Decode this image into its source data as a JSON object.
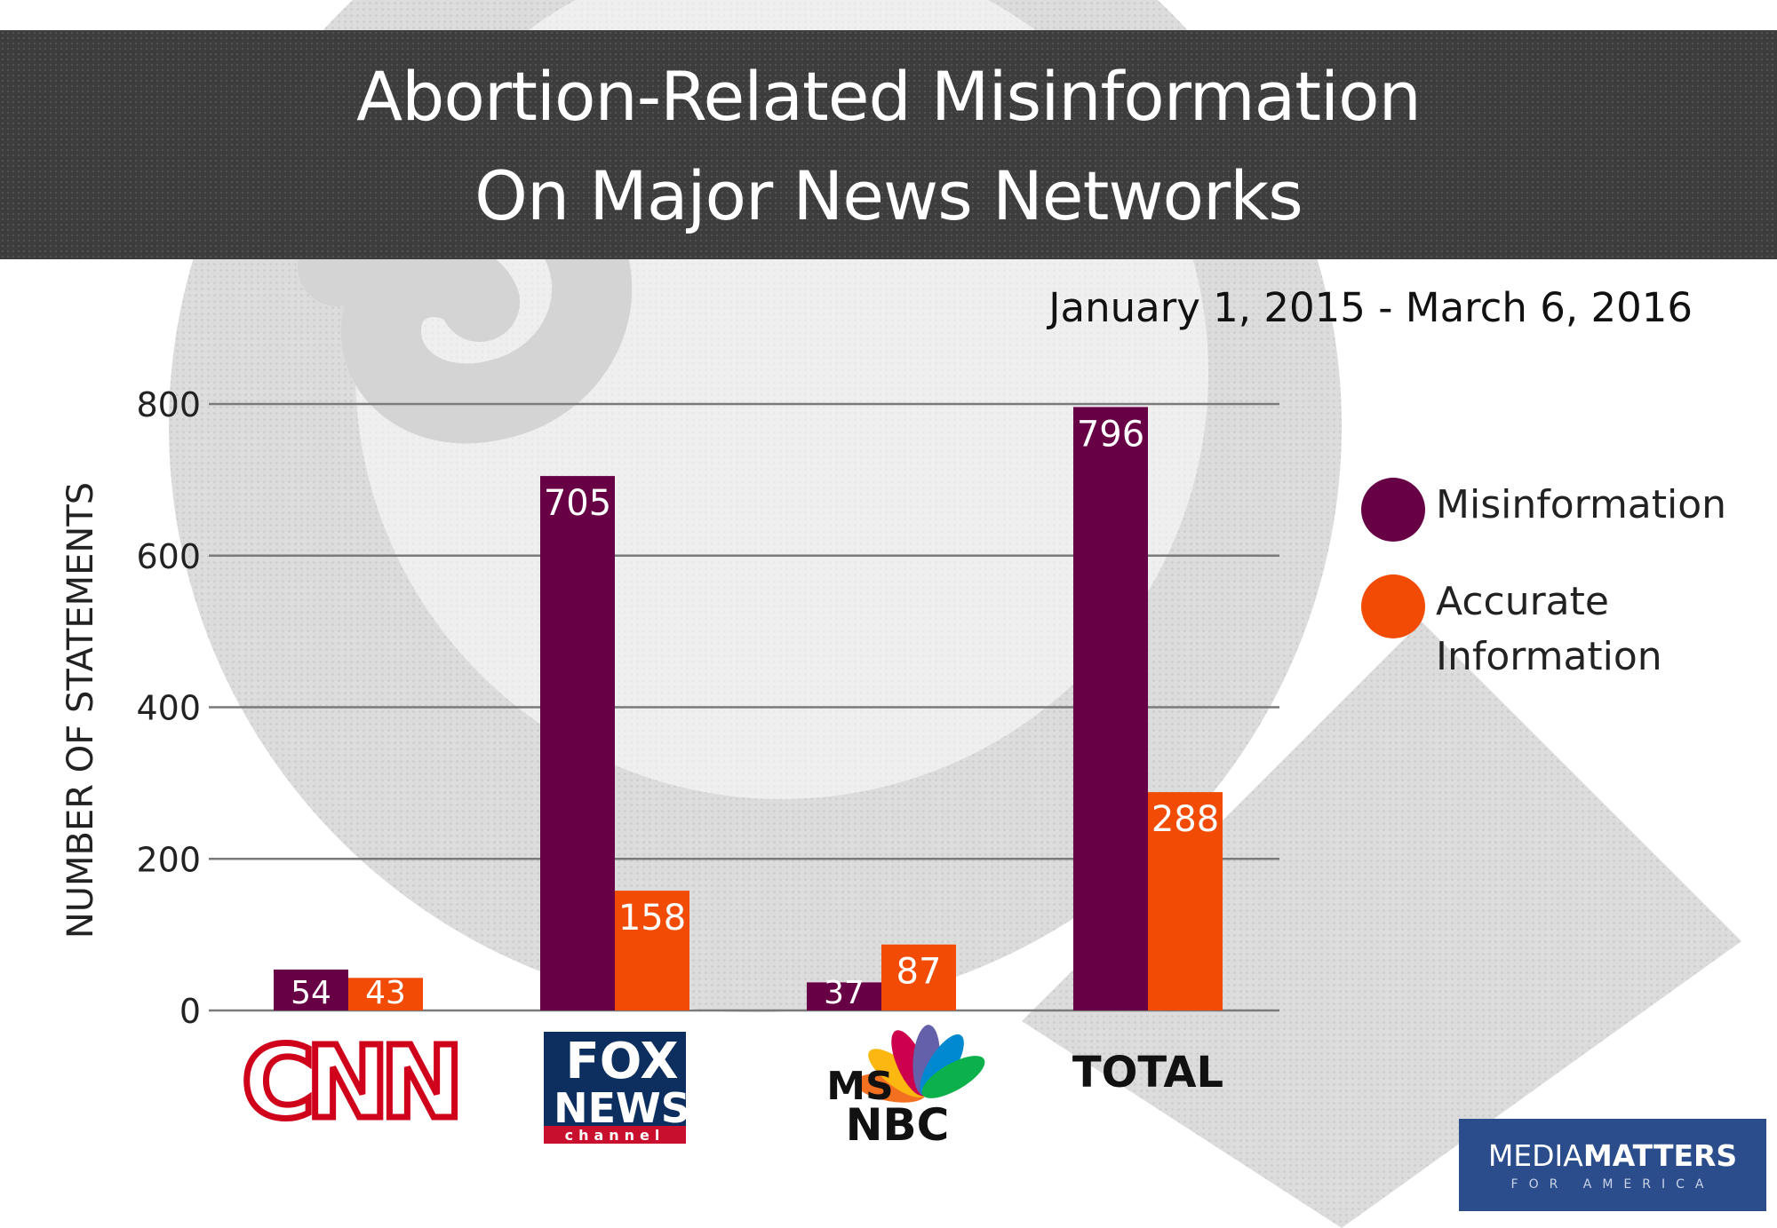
{
  "title": {
    "line1": "Abortion-Related Misinformation",
    "line2": "On Major News Networks"
  },
  "subtitle": "January 1, 2015 - March 6, 2016",
  "chart_data": {
    "type": "bar",
    "categories": [
      "CNN",
      "FOX NEWS channel",
      "MSNBC",
      "TOTAL"
    ],
    "series": [
      {
        "name": "Misinformation",
        "values": [
          54,
          705,
          37,
          796
        ],
        "color": "#670044"
      },
      {
        "name": "Accurate Information",
        "values": [
          43,
          158,
          87,
          288
        ],
        "color": "#f14b05"
      }
    ],
    "ylabel": "NUMBER OF STATEMENTS",
    "yticks": [
      0,
      200,
      400,
      600,
      800
    ],
    "ylim": [
      0,
      800
    ],
    "grid": true,
    "legend": "right"
  },
  "logos": {
    "cnn": "CNN",
    "fox": {
      "line1": "FOX",
      "line2": "NEWS",
      "line3": "channel"
    },
    "msnbc": {
      "ms": "MS",
      "nbc": "NBC"
    },
    "total": "TOTAL"
  },
  "legend": {
    "misinformation": "Misinformation",
    "accurate": "Accurate\nInformation"
  },
  "brand": {
    "light": "MEDIA",
    "bold": "MATTERS",
    "sub": "FOR AMERICA"
  }
}
